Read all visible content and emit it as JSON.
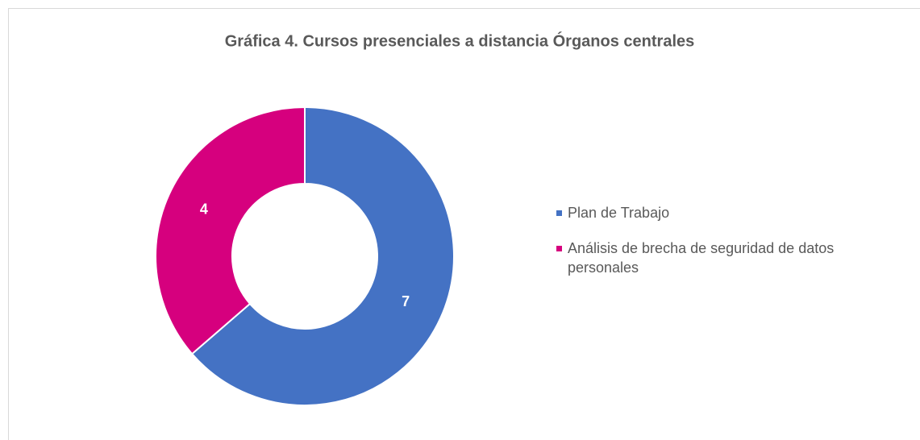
{
  "chart_data": {
    "type": "donut",
    "title": "Gráfica 4. Cursos presenciales a distancia Órganos centrales",
    "categories": [
      "Plan de Trabajo",
      "Análisis de brecha de seguridad de datos personales"
    ],
    "values": [
      7,
      4
    ],
    "colors": [
      "#4472c4",
      "#d6007e"
    ],
    "legend": "right"
  }
}
